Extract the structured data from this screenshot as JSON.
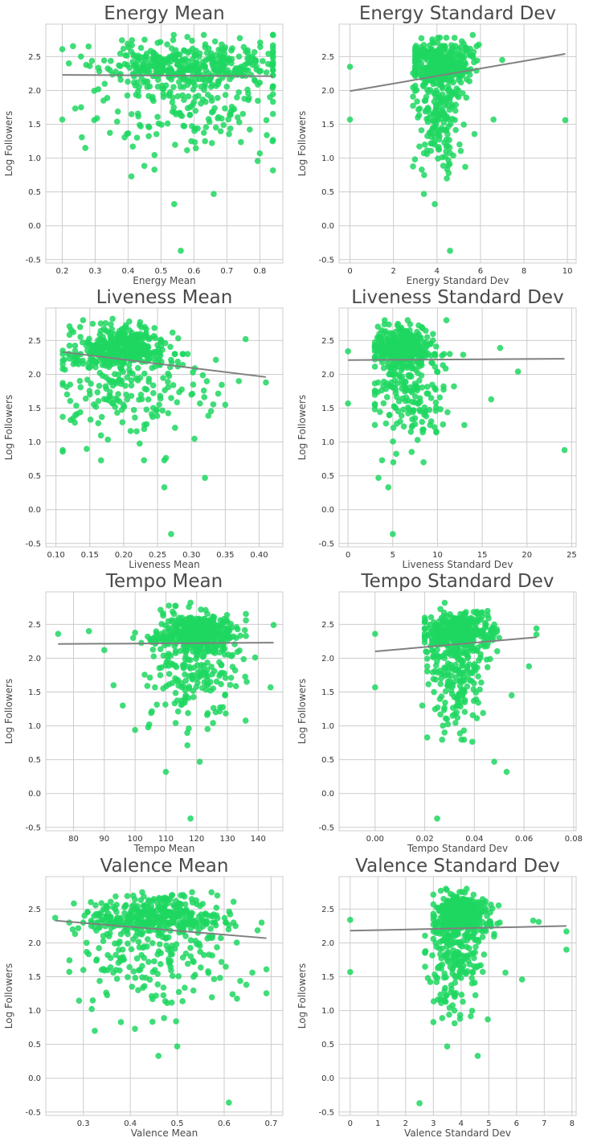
{
  "colors": {
    "points": "#1ed760",
    "fit_line": "#808080",
    "grid": "#cccccc",
    "title": "#4a4a4a"
  },
  "chart_data": [
    {
      "type": "scatter",
      "title": "Energy Mean",
      "xlabel": "Energy Mean",
      "ylabel": "Log Followers",
      "xlim": [
        0.15,
        0.87
      ],
      "ylim": [
        -0.55,
        2.98
      ],
      "xticks": [
        0.2,
        0.3,
        0.4,
        0.5,
        0.6,
        0.7,
        0.8
      ],
      "xtick_labels": [
        "0.2",
        "0.3",
        "0.4",
        "0.5",
        "0.6",
        "0.7",
        "0.8"
      ],
      "yticks": [
        -0.5,
        0.0,
        0.5,
        1.0,
        1.5,
        2.0,
        2.5
      ],
      "ytick_labels": [
        "-0.5",
        "0.0",
        "0.5",
        "1.0",
        "1.5",
        "2.0",
        "2.5"
      ],
      "grid": true,
      "fit": {
        "x": [
          0.2,
          0.84
        ],
        "y": [
          2.23,
          2.21
        ]
      },
      "cluster": {
        "cx": 0.58,
        "sx": 0.13,
        "cy": 2.38,
        "sy": 0.16,
        "n": 340,
        "xmin": 0.2,
        "xmax": 0.84,
        "ymin": 1.9,
        "ymax": 2.82,
        "seed": 11
      },
      "scatter": {
        "cx": 0.58,
        "sx": 0.15,
        "cy": 1.85,
        "sy": 0.42,
        "n": 200,
        "xmin": 0.2,
        "xmax": 0.84,
        "ymin": 0.6,
        "ymax": 2.3,
        "seed": 21
      },
      "points": [
        [
          0.56,
          -0.37
        ],
        [
          0.54,
          0.32
        ],
        [
          0.66,
          0.47
        ],
        [
          0.48,
          0.83
        ],
        [
          0.41,
          0.73
        ],
        [
          0.2,
          1.57
        ],
        [
          0.27,
          1.15
        ],
        [
          0.8,
          1.07
        ],
        [
          0.82,
          1.56
        ],
        [
          0.58,
          2.79
        ],
        [
          0.45,
          2.75
        ],
        [
          0.28,
          2.65
        ],
        [
          0.84,
          2.3
        ],
        [
          0.22,
          2.4
        ]
      ]
    },
    {
      "type": "scatter",
      "title": "Energy Standard Dev",
      "xlabel": "Energy Standard Dev",
      "ylabel": "Log Followers",
      "xlim": [
        -0.5,
        10.4
      ],
      "ylim": [
        -0.55,
        2.98
      ],
      "xticks": [
        0,
        2,
        4,
        6,
        8,
        10
      ],
      "xtick_labels": [
        "0",
        "2",
        "4",
        "6",
        "8",
        "10"
      ],
      "yticks": [
        -0.5,
        0.0,
        0.5,
        1.0,
        1.5,
        2.0,
        2.5
      ],
      "ytick_labels": [
        "-0.5",
        "0.0",
        "0.5",
        "1.0",
        "1.5",
        "2.0",
        "2.5"
      ],
      "grid": true,
      "fit": {
        "x": [
          0,
          9.9
        ],
        "y": [
          1.99,
          2.54
        ]
      },
      "cluster": {
        "cx": 4.2,
        "sx": 0.7,
        "cy": 2.4,
        "sy": 0.16,
        "n": 340,
        "xmin": 3.0,
        "xmax": 6.5,
        "ymin": 1.9,
        "ymax": 2.82,
        "seed": 12
      },
      "scatter": {
        "cx": 4.0,
        "sx": 0.55,
        "cy": 1.75,
        "sy": 0.42,
        "n": 200,
        "xmin": 2.9,
        "xmax": 6.0,
        "ymin": 0.7,
        "ymax": 2.3,
        "seed": 22
      },
      "points": [
        [
          0.0,
          2.35
        ],
        [
          0.0,
          1.57
        ],
        [
          9.9,
          1.56
        ],
        [
          4.6,
          -0.37
        ],
        [
          3.9,
          0.32
        ],
        [
          3.4,
          0.47
        ],
        [
          7.0,
          2.45
        ],
        [
          6.6,
          1.57
        ],
        [
          5.3,
          0.87
        ],
        [
          3.3,
          0.83
        ]
      ]
    },
    {
      "type": "scatter",
      "title": "Liveness Mean",
      "xlabel": "Liveness Mean",
      "ylabel": "Log Followers",
      "xlim": [
        0.085,
        0.435
      ],
      "ylim": [
        -0.55,
        2.98
      ],
      "xticks": [
        0.1,
        0.15,
        0.2,
        0.25,
        0.3,
        0.35,
        0.4
      ],
      "xtick_labels": [
        "0.10",
        "0.15",
        "0.20",
        "0.25",
        "0.30",
        "0.35",
        "0.40"
      ],
      "yticks": [
        -0.5,
        0.0,
        0.5,
        1.0,
        1.5,
        2.0,
        2.5
      ],
      "ytick_labels": [
        "-0.5",
        "0.0",
        "0.5",
        "1.0",
        "1.5",
        "2.0",
        "2.5"
      ],
      "grid": true,
      "fit": {
        "x": [
          0.11,
          0.41
        ],
        "y": [
          2.33,
          1.96
        ]
      },
      "cluster": {
        "cx": 0.19,
        "sx": 0.035,
        "cy": 2.4,
        "sy": 0.16,
        "n": 340,
        "xmin": 0.12,
        "xmax": 0.3,
        "ymin": 1.9,
        "ymax": 2.82,
        "seed": 13
      },
      "scatter": {
        "cx": 0.2,
        "sx": 0.06,
        "cy": 1.8,
        "sy": 0.42,
        "n": 200,
        "xmin": 0.11,
        "xmax": 0.38,
        "ymin": 0.7,
        "ymax": 2.3,
        "seed": 23
      },
      "points": [
        [
          0.27,
          -0.36
        ],
        [
          0.26,
          0.33
        ],
        [
          0.32,
          0.47
        ],
        [
          0.26,
          0.73
        ],
        [
          0.23,
          0.73
        ],
        [
          0.11,
          0.88
        ],
        [
          0.41,
          1.88
        ],
        [
          0.38,
          2.52
        ],
        [
          0.35,
          1.55
        ],
        [
          0.11,
          2.35
        ],
        [
          0.14,
          2.8
        ],
        [
          0.37,
          1.9
        ],
        [
          0.3,
          1.7
        ]
      ]
    },
    {
      "type": "scatter",
      "title": "Liveness Standard Dev",
      "xlabel": "Liveness Standard Dev",
      "ylabel": "Log Followers",
      "xlim": [
        -1.0,
        25.5
      ],
      "ylim": [
        -0.55,
        2.98
      ],
      "xticks": [
        0,
        5,
        10,
        15,
        20,
        25
      ],
      "xtick_labels": [
        "0",
        "5",
        "10",
        "15",
        "20",
        "25"
      ],
      "yticks": [
        -0.5,
        0.0,
        0.5,
        1.0,
        1.5,
        2.0,
        2.5
      ],
      "ytick_labels": [
        "-0.5",
        "0.0",
        "0.5",
        "1.0",
        "1.5",
        "2.0",
        "2.5"
      ],
      "grid": true,
      "fit": {
        "x": [
          0,
          24.2
        ],
        "y": [
          2.21,
          2.23
        ]
      },
      "cluster": {
        "cx": 6.0,
        "sx": 1.6,
        "cy": 2.4,
        "sy": 0.15,
        "n": 340,
        "xmin": 3.0,
        "xmax": 11.0,
        "ymin": 1.9,
        "ymax": 2.8,
        "seed": 14
      },
      "scatter": {
        "cx": 6.5,
        "sx": 2.2,
        "cy": 1.8,
        "sy": 0.42,
        "n": 200,
        "xmin": 3.0,
        "xmax": 14.0,
        "ymin": 0.7,
        "ymax": 2.3,
        "seed": 24
      },
      "points": [
        [
          0.0,
          2.34
        ],
        [
          0.0,
          1.57
        ],
        [
          24.2,
          0.88
        ],
        [
          19.0,
          2.04
        ],
        [
          17.0,
          2.39
        ],
        [
          16.0,
          1.63
        ],
        [
          5.0,
          -0.36
        ],
        [
          4.5,
          0.33
        ],
        [
          3.4,
          0.47
        ],
        [
          3.8,
          0.73
        ],
        [
          11.0,
          2.8
        ],
        [
          13.0,
          1.25
        ]
      ]
    },
    {
      "type": "scatter",
      "title": "Tempo Mean",
      "xlabel": "Tempo Mean",
      "ylabel": "Log Followers",
      "xlim": [
        71,
        148
      ],
      "ylim": [
        -0.55,
        2.98
      ],
      "xticks": [
        80,
        90,
        100,
        110,
        120,
        130,
        140
      ],
      "xtick_labels": [
        "80",
        "90",
        "100",
        "110",
        "120",
        "130",
        "140"
      ],
      "yticks": [
        -0.5,
        0.0,
        0.5,
        1.0,
        1.5,
        2.0,
        2.5
      ],
      "ytick_labels": [
        "-0.5",
        "0.0",
        "0.5",
        "1.0",
        "1.5",
        "2.0",
        "2.5"
      ],
      "grid": true,
      "fit": {
        "x": [
          75,
          145
        ],
        "y": [
          2.21,
          2.23
        ]
      },
      "cluster": {
        "cx": 120,
        "sx": 6.5,
        "cy": 2.4,
        "sy": 0.15,
        "n": 340,
        "xmin": 100,
        "xmax": 136,
        "ymin": 1.9,
        "ymax": 2.82,
        "seed": 15
      },
      "scatter": {
        "cx": 119,
        "sx": 7.5,
        "cy": 1.8,
        "sy": 0.42,
        "n": 200,
        "xmin": 97,
        "xmax": 138,
        "ymin": 0.7,
        "ymax": 2.3,
        "seed": 25
      },
      "points": [
        [
          75,
          2.36
        ],
        [
          85,
          2.4
        ],
        [
          145,
          2.49
        ],
        [
          144,
          1.57
        ],
        [
          118,
          -0.37
        ],
        [
          110,
          0.32
        ],
        [
          121,
          0.47
        ],
        [
          100,
          0.94
        ],
        [
          96,
          1.3
        ],
        [
          93,
          1.6
        ],
        [
          90,
          2.12
        ],
        [
          139,
          2.01
        ],
        [
          118,
          2.82
        ]
      ]
    },
    {
      "type": "scatter",
      "title": "Tempo Standard Dev",
      "xlabel": "Tempo Standard Dev",
      "ylabel": "Log Followers",
      "xlim": [
        -0.0145,
        0.081
      ],
      "ylim": [
        -0.55,
        2.98
      ],
      "xticks": [
        0.0,
        0.02,
        0.04,
        0.06,
        0.08
      ],
      "xtick_labels": [
        "0.00",
        "0.02",
        "0.04",
        "0.06",
        "0.08"
      ],
      "yticks": [
        -0.5,
        0.0,
        0.5,
        1.0,
        1.5,
        2.0,
        2.5
      ],
      "ytick_labels": [
        "-0.5",
        "0.0",
        "0.5",
        "1.0",
        "1.5",
        "2.0",
        "2.5"
      ],
      "grid": true,
      "fit": {
        "x": [
          0.0,
          0.065
        ],
        "y": [
          2.1,
          2.31
        ]
      },
      "cluster": {
        "cx": 0.034,
        "sx": 0.007,
        "cy": 2.4,
        "sy": 0.15,
        "n": 340,
        "xmin": 0.02,
        "xmax": 0.063,
        "ymin": 1.9,
        "ymax": 2.82,
        "seed": 16
      },
      "scatter": {
        "cx": 0.033,
        "sx": 0.006,
        "cy": 1.75,
        "sy": 0.42,
        "n": 200,
        "xmin": 0.021,
        "xmax": 0.05,
        "ymin": 0.7,
        "ymax": 2.3,
        "seed": 26
      },
      "points": [
        [
          0.0,
          2.36
        ],
        [
          0.0,
          1.57
        ],
        [
          0.065,
          2.44
        ],
        [
          0.065,
          2.35
        ],
        [
          0.025,
          -0.37
        ],
        [
          0.053,
          0.32
        ],
        [
          0.048,
          0.47
        ],
        [
          0.021,
          0.83
        ],
        [
          0.062,
          1.88
        ],
        [
          0.055,
          1.45
        ],
        [
          0.019,
          1.3
        ]
      ]
    },
    {
      "type": "scatter",
      "title": "Valence Mean",
      "xlabel": "Valence Mean",
      "ylabel": "Log Followers",
      "xlim": [
        0.22,
        0.725
      ],
      "ylim": [
        -0.55,
        2.98
      ],
      "xticks": [
        0.3,
        0.4,
        0.5,
        0.6,
        0.7
      ],
      "xtick_labels": [
        "0.3",
        "0.4",
        "0.5",
        "0.6",
        "0.7"
      ],
      "yticks": [
        -0.5,
        0.0,
        0.5,
        1.0,
        1.5,
        2.0,
        2.5
      ],
      "ytick_labels": [
        "-0.5",
        "0.0",
        "0.5",
        "1.0",
        "1.5",
        "2.0",
        "2.5"
      ],
      "grid": true,
      "fit": {
        "x": [
          0.24,
          0.69
        ],
        "y": [
          2.33,
          2.07
        ]
      },
      "cluster": {
        "cx": 0.45,
        "sx": 0.07,
        "cy": 2.4,
        "sy": 0.15,
        "n": 340,
        "xmin": 0.27,
        "xmax": 0.62,
        "ymin": 1.9,
        "ymax": 2.82,
        "seed": 17
      },
      "scatter": {
        "cx": 0.46,
        "sx": 0.09,
        "cy": 1.8,
        "sy": 0.42,
        "n": 200,
        "xmin": 0.27,
        "xmax": 0.69,
        "ymin": 0.7,
        "ymax": 2.3,
        "seed": 27
      },
      "points": [
        [
          0.24,
          2.37
        ],
        [
          0.61,
          -0.36
        ],
        [
          0.46,
          0.33
        ],
        [
          0.5,
          0.47
        ],
        [
          0.38,
          0.83
        ],
        [
          0.41,
          0.73
        ],
        [
          0.69,
          1.61
        ],
        [
          0.66,
          1.56
        ],
        [
          0.62,
          2.3
        ],
        [
          0.3,
          1.6
        ],
        [
          0.32,
          1.15
        ]
      ]
    },
    {
      "type": "scatter",
      "title": "Valence Standard Dev",
      "xlabel": "Valence Standard Dev",
      "ylabel": "Log Followers",
      "xlim": [
        -0.4,
        8.15
      ],
      "ylim": [
        -0.55,
        2.98
      ],
      "xticks": [
        0,
        1,
        2,
        3,
        4,
        5,
        6,
        7,
        8
      ],
      "xtick_labels": [
        "0",
        "1",
        "2",
        "3",
        "4",
        "5",
        "6",
        "7",
        "8"
      ],
      "yticks": [
        -0.5,
        0.0,
        0.5,
        1.0,
        1.5,
        2.0,
        2.5
      ],
      "ytick_labels": [
        "-0.5",
        "0.0",
        "0.5",
        "1.0",
        "1.5",
        "2.0",
        "2.5"
      ],
      "grid": true,
      "fit": {
        "x": [
          0,
          7.8
        ],
        "y": [
          2.18,
          2.25
        ]
      },
      "cluster": {
        "cx": 4.0,
        "sx": 0.5,
        "cy": 2.4,
        "sy": 0.15,
        "n": 340,
        "xmin": 3.0,
        "xmax": 5.7,
        "ymin": 1.9,
        "ymax": 2.8,
        "seed": 18
      },
      "scatter": {
        "cx": 3.9,
        "sx": 0.55,
        "cy": 1.75,
        "sy": 0.42,
        "n": 200,
        "xmin": 2.7,
        "xmax": 5.8,
        "ymin": 0.7,
        "ymax": 2.3,
        "seed": 28
      },
      "points": [
        [
          0.0,
          2.34
        ],
        [
          0.0,
          1.57
        ],
        [
          7.8,
          2.17
        ],
        [
          7.8,
          1.9
        ],
        [
          6.6,
          2.33
        ],
        [
          6.8,
          2.31
        ],
        [
          6.2,
          1.46
        ],
        [
          2.5,
          -0.37
        ],
        [
          4.6,
          0.33
        ],
        [
          3.5,
          0.47
        ],
        [
          3.0,
          0.83
        ],
        [
          2.8,
          1.48
        ],
        [
          5.6,
          1.56
        ]
      ]
    }
  ]
}
